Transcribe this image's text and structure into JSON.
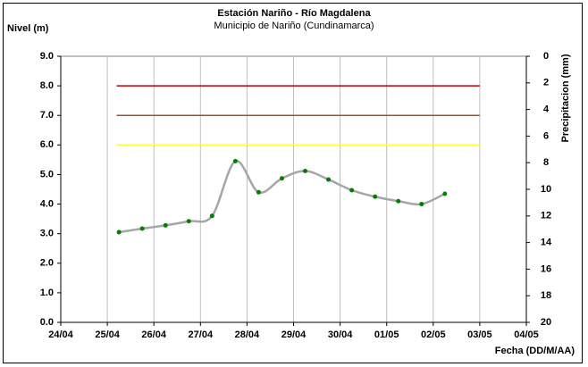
{
  "chart_data": {
    "type": "line",
    "title": "Estación Nariño  - Río Magdalena",
    "subtitle": "Municipio de Nariño (Cundinamarca)",
    "y_label": "Nivel (m)",
    "y2_label": "Precipitacion (mm)",
    "x_label": "Fecha (DD/M/AA)",
    "xlim": [
      0,
      10
    ],
    "xticks": [
      {
        "value": 0,
        "label": "24/04"
      },
      {
        "value": 1,
        "label": "25/04"
      },
      {
        "value": 2,
        "label": "26/04"
      },
      {
        "value": 3,
        "label": "27/04"
      },
      {
        "value": 4,
        "label": "28/04"
      },
      {
        "value": 5,
        "label": "29/04"
      },
      {
        "value": 6,
        "label": "30/04"
      },
      {
        "value": 7,
        "label": "01/05"
      },
      {
        "value": 8,
        "label": "02/05"
      },
      {
        "value": 9,
        "label": "03/05"
      },
      {
        "value": 10,
        "label": "04/05"
      }
    ],
    "ylim": [
      0,
      9
    ],
    "yticks": [
      {
        "value": 0,
        "label": "0.0"
      },
      {
        "value": 1,
        "label": "1.0"
      },
      {
        "value": 2,
        "label": "2.0"
      },
      {
        "value": 3,
        "label": "3.0"
      },
      {
        "value": 4,
        "label": "4.0"
      },
      {
        "value": 5,
        "label": "5.0"
      },
      {
        "value": 6,
        "label": "6.0"
      },
      {
        "value": 7,
        "label": "7.0"
      },
      {
        "value": 8,
        "label": "8.0"
      },
      {
        "value": 9,
        "label": "9.0"
      }
    ],
    "y2lim": [
      0,
      20
    ],
    "y2_inverted": true,
    "y2ticks": [
      0,
      2,
      4,
      6,
      8,
      10,
      12,
      14,
      16,
      18,
      20
    ],
    "grid": "x",
    "smooth": true,
    "series": [
      {
        "color": "#a6a6a6",
        "marker_color": "#008000",
        "x": [
          1.25,
          1.75,
          2.25,
          2.75,
          3.25,
          3.75,
          4.25,
          4.75,
          5.25,
          5.75,
          6.25,
          6.75,
          7.25,
          7.75,
          8.25
        ],
        "values": [
          3.05,
          3.17,
          3.28,
          3.42,
          3.6,
          5.45,
          4.4,
          4.87,
          5.12,
          4.83,
          4.47,
          4.25,
          4.1,
          4.0,
          4.35
        ]
      }
    ],
    "reference_lines": [
      {
        "y": 8,
        "color": "#c00000",
        "x": [
          1.2,
          9
        ]
      },
      {
        "y": 7,
        "color": "#a0522d",
        "x": [
          1.2,
          9
        ]
      },
      {
        "y": 6,
        "color": "#ffff33",
        "x": [
          1.2,
          9
        ]
      }
    ]
  }
}
